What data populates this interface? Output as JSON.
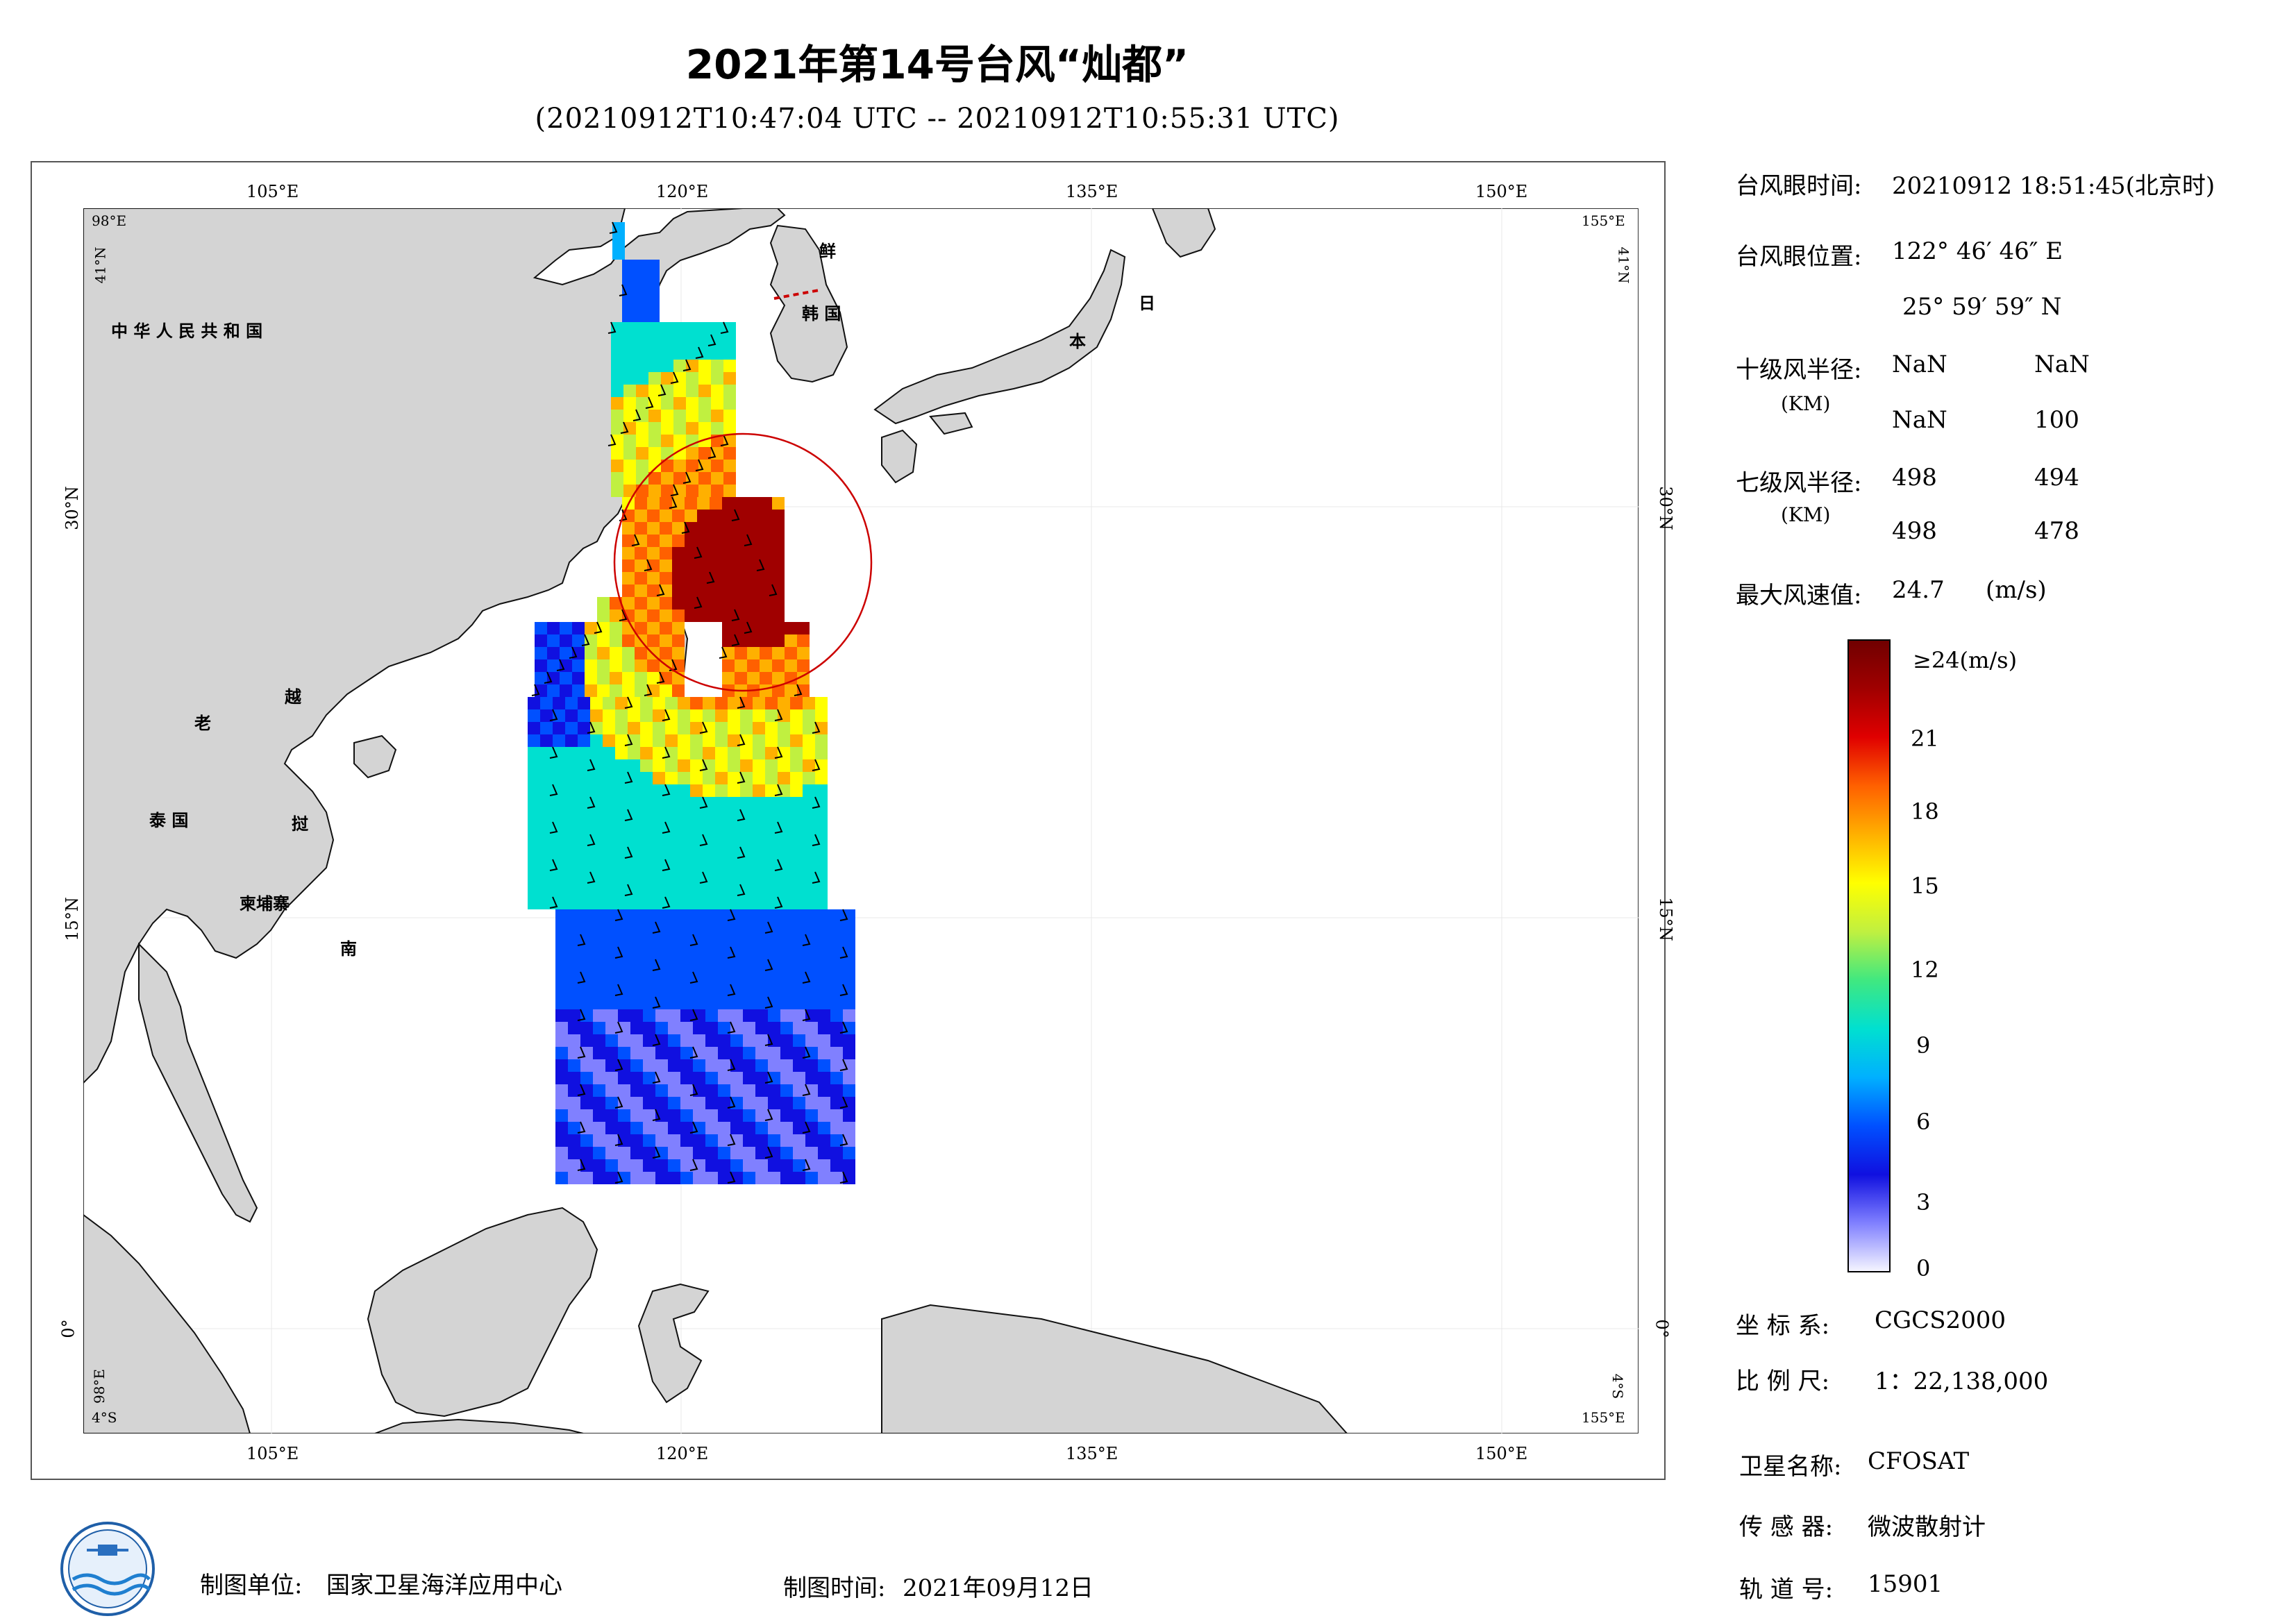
{
  "header": {
    "title": "2021年第14号台风“灿都”",
    "subtitle": "(20210912T10:47:04 UTC -- 20210912T10:55:31 UTC)"
  },
  "map": {
    "lon_labels": [
      "105°E",
      "120°E",
      "135°E",
      "150°E"
    ],
    "lat_labels": [
      "30°N",
      "15°N",
      "0°"
    ],
    "corner_labels": {
      "top_left_lon": "98°E",
      "top_left_lat": "41°N",
      "top_right_lon": "155°E",
      "top_right_lat": "41°N",
      "bottom_left_lon": "4°S",
      "bottom_left_lat": "98°E",
      "bottom_right_lon": "155°E",
      "bottom_right_lat": "4°S"
    },
    "country_labels": {
      "china": "中 华 人 民 共 和 国",
      "korea_north": "鲜",
      "korea_south": "韩 国",
      "japan_a": "日",
      "japan_b": "本",
      "laos": "老",
      "vietnam_a": "越",
      "vietnam_b": "挝",
      "vietnam_c": "南",
      "thailand": "泰 国",
      "cambodia": "柬埔寨"
    },
    "colors": {
      "land": "#d4d4d4",
      "sea": "#ffffff",
      "typhoon_circle": "#cc0000"
    }
  },
  "info": {
    "eye_time_label": "台风眼时间:",
    "eye_time_value": "20210912 18:51:45(北京时)",
    "eye_pos_label": "台风眼位置:",
    "eye_lon": "122° 46′ 46″ E",
    "eye_lat": "25° 59′ 59″ N",
    "r10_label": "十级风半径:",
    "r10_unit": "(KM)",
    "r10_values": [
      "NaN",
      "NaN",
      "NaN",
      "100"
    ],
    "r7_label": "七级风半径:",
    "r7_unit": "(KM)",
    "r7_values": [
      "498",
      "494",
      "498",
      "478"
    ],
    "max_wind_label": "最大风速值:",
    "max_wind_value": "24.7",
    "max_wind_unit": "(m/s)"
  },
  "colorbar": {
    "top_label": "≥24(m/s)",
    "ticks": [
      "21",
      "18",
      "15",
      "12",
      "9",
      "6",
      "3",
      "0"
    ],
    "tick_values": [
      21,
      18,
      15,
      12,
      9,
      6,
      3,
      0
    ],
    "max": 24,
    "stops": [
      "#f6f6ff",
      "#8080ff",
      "#1010e0",
      "#0050ff",
      "#00b0ff",
      "#00e0d0",
      "#40e880",
      "#c0f040",
      "#ffff00",
      "#ffb000",
      "#ff6000",
      "#e00000",
      "#a00000",
      "#700000"
    ]
  },
  "meta": {
    "crs_label": "坐 标 系:",
    "crs_value": "CGCS2000",
    "scale_label": "比 例 尺:",
    "scale_value": "1：22,138,000",
    "satellite_label": "卫星名称:",
    "satellite_value": "CFOSAT",
    "sensor_label": "传 感 器:",
    "sensor_value": "微波散射计",
    "orbit_label": "轨 道 号:",
    "orbit_value": "15901"
  },
  "footer": {
    "unit_label": "制图单位:",
    "unit_value": "国家卫星海洋应用中心",
    "time_label": "制图时间:",
    "time_value": "2021年09月12日"
  }
}
